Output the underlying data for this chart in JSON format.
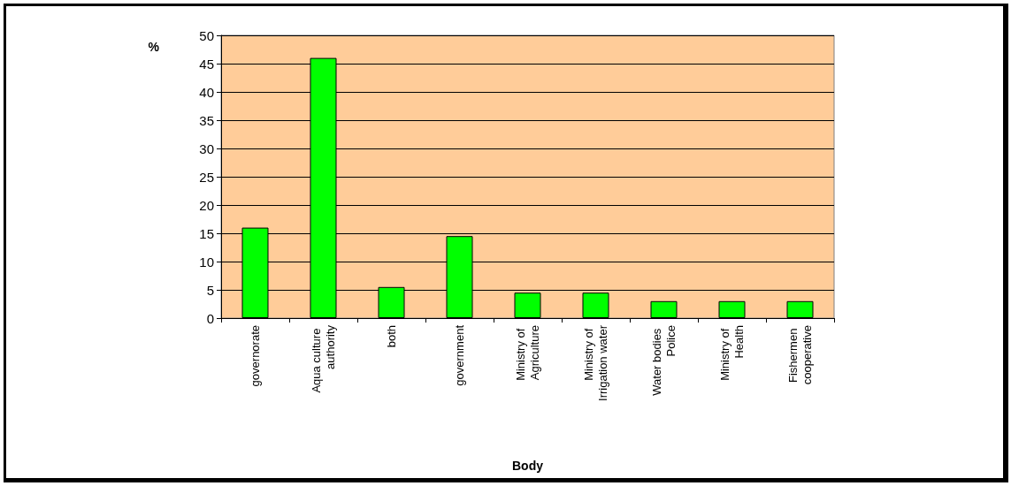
{
  "chart_data": {
    "type": "bar",
    "xlabel": "Body",
    "ylabel": "%",
    "categories": [
      "governorate",
      "Aqua culture authority",
      "both",
      "government",
      "Ministry of Agriculture",
      "Ministry of Irrigation water",
      "Water bodies Police",
      "Ministry of Health",
      "Fishermen cooperative"
    ],
    "values": [
      16,
      46,
      5.5,
      14.5,
      4.5,
      4.5,
      3,
      3,
      3
    ],
    "color": "#00ff00",
    "ylim": [
      0,
      50
    ],
    "yticks": [
      0,
      5,
      10,
      15,
      20,
      25,
      30,
      35,
      40,
      45,
      50
    ],
    "grid": "y"
  }
}
